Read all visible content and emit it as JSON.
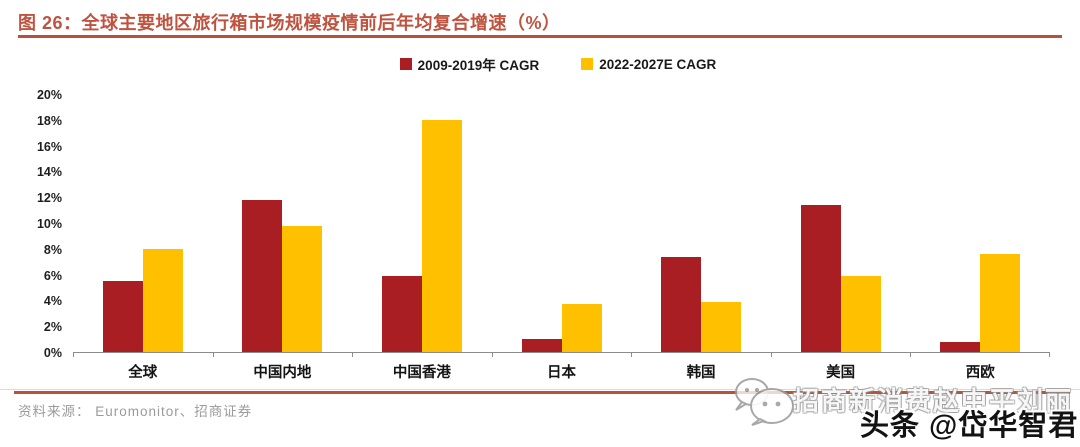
{
  "header": {
    "title": "图 26：全球主要地区旅行箱市场规模疫情前后年均复合增速（%）"
  },
  "chart_data": {
    "type": "bar",
    "title": "全球主要地区旅行箱市场规模疫情前后年均复合增速（%）",
    "categories": [
      "全球",
      "中国内地",
      "中国香港",
      "日本",
      "韩国",
      "美国",
      "西欧"
    ],
    "series": [
      {
        "name": "2009-2019年 CAGR",
        "color": "#a81e22",
        "values": [
          5.5,
          11.8,
          5.9,
          1.0,
          7.4,
          11.4,
          0.8
        ]
      },
      {
        "name": "2022-2027E CAGR",
        "color": "#ffc000",
        "values": [
          8.0,
          9.8,
          18.0,
          3.7,
          3.9,
          5.9,
          7.6
        ]
      }
    ],
    "xlabel": "",
    "ylabel": "",
    "ylim": [
      0,
      20
    ],
    "ytick_step": 2,
    "ytick_suffix": "%",
    "grid": false,
    "legend_position": "top-center"
  },
  "footer": {
    "source": "资料来源： Euromonitor、招商证券"
  },
  "watermark": {
    "icon": "wechat-icon",
    "line1": "招商新消费赵中平刘丽",
    "line2": "头条 @岱华智君"
  },
  "colors": {
    "accent_rule": "#b4523b",
    "title_text": "#bf5340",
    "axis": "#8c8c8c",
    "bar_red": "#a81e22",
    "bar_yellow": "#ffc000"
  }
}
